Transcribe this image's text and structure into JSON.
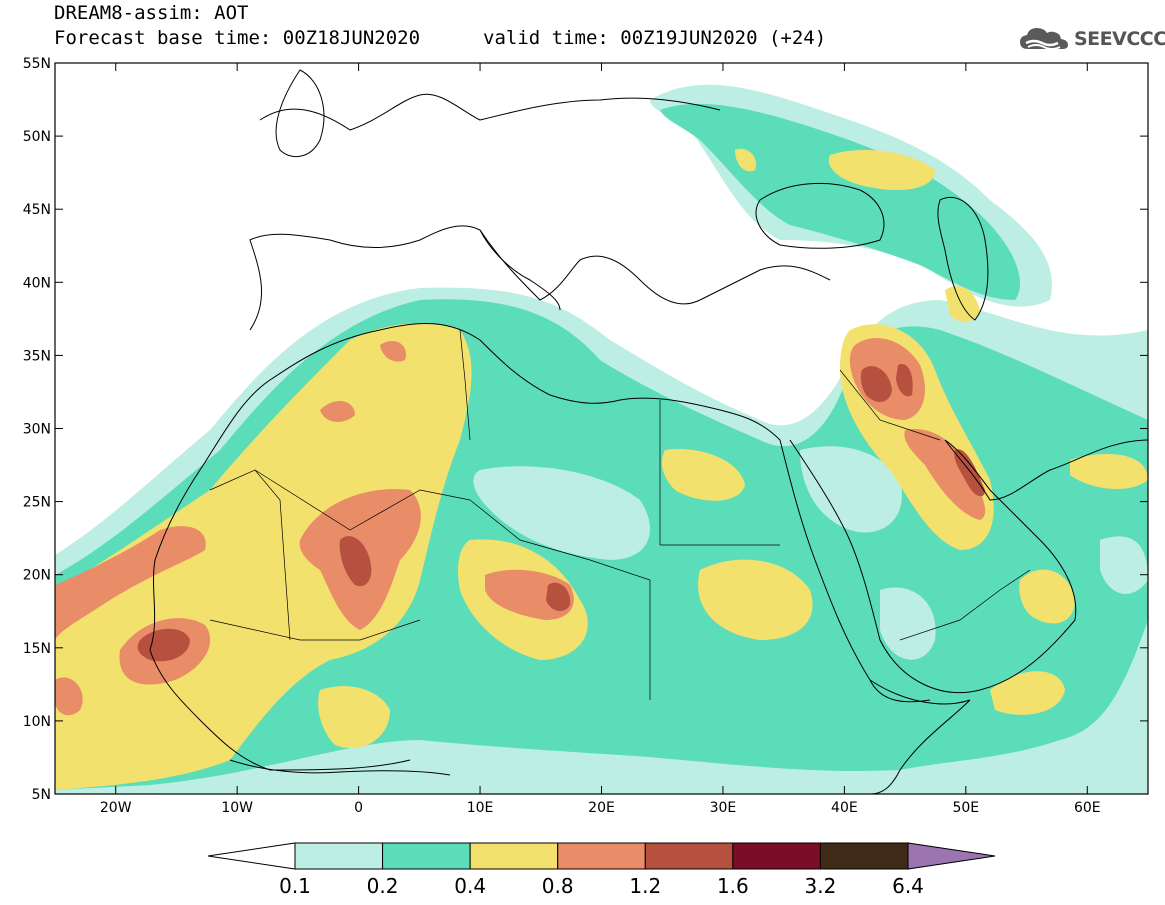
{
  "header": {
    "title": "DREAM8-assim: AOT",
    "base_time": "Forecast base time: 00Z18JUN2020",
    "valid_time": "valid time: 00Z19JUN2020 (+24)",
    "logo_text": "SEEVCCC"
  },
  "axes": {
    "lat_labels": [
      "55N",
      "50N",
      "45N",
      "40N",
      "35N",
      "30N",
      "25N",
      "20N",
      "15N",
      "10N",
      "5N"
    ],
    "lat_values": [
      55,
      50,
      45,
      40,
      35,
      30,
      25,
      20,
      15,
      10,
      5
    ],
    "lon_labels": [
      "20W",
      "10W",
      "0",
      "10E",
      "20E",
      "30E",
      "40E",
      "50E",
      "60E"
    ],
    "lon_values": [
      -20,
      -10,
      0,
      10,
      20,
      30,
      40,
      50,
      60
    ],
    "lon_range": [
      -25,
      65
    ],
    "lat_range": [
      5,
      55
    ]
  },
  "colorbar": {
    "labels": [
      "0.1",
      "0.2",
      "0.4",
      "0.8",
      "1.2",
      "1.6",
      "3.2",
      "6.4"
    ],
    "colors": [
      "#ffffff",
      "#bdeee3",
      "#5cddb9",
      "#f3e16e",
      "#e88d67",
      "#b6513f",
      "#7b0d26",
      "#3e2a17",
      "#9c74b0"
    ]
  },
  "colors": {
    "c1": "#bdeee3",
    "c2": "#5cddb9",
    "c3": "#f3e16e",
    "c4": "#e88d67",
    "c5": "#b6513f",
    "coast": "#000000"
  }
}
